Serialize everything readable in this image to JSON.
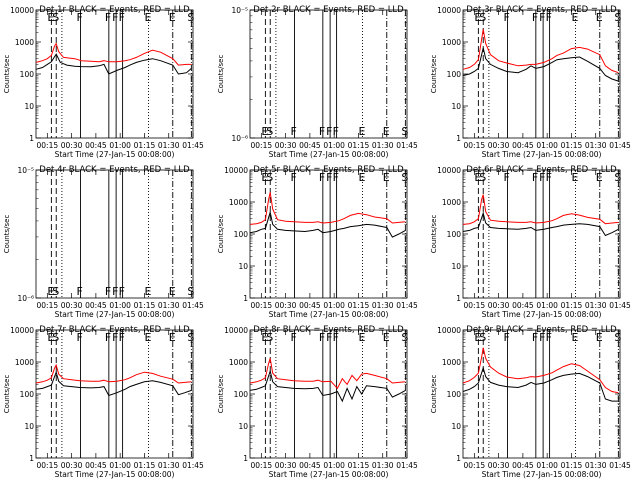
{
  "chart_data": {
    "type": "line",
    "colors": {
      "events": "#000000",
      "lld": "#ff0000"
    },
    "x_ticks": [
      "00:15",
      "00:30",
      "00:45",
      "01:00",
      "01:15",
      "01:30",
      "01:45"
    ],
    "x_range_minutes": [
      8,
      105
    ],
    "xlabel": "Start Time (27-Jan-15 00:08:00)",
    "ylabel": "Counts/sec",
    "markers": [
      {
        "t": 17.5,
        "style": "dash",
        "letter": "E"
      },
      {
        "t": 20.5,
        "style": "dash",
        "letter": "S"
      },
      {
        "t": 24,
        "style": "dot",
        "letter": ""
      },
      {
        "t": 35.5,
        "style": "solid",
        "letter": "F"
      },
      {
        "t": 53,
        "style": "solid",
        "letter": "F"
      },
      {
        "t": 57.5,
        "style": "solid",
        "letter": "F"
      },
      {
        "t": 61.5,
        "style": "solid",
        "letter": "F"
      },
      {
        "t": 77.5,
        "style": "dot",
        "letter": "E"
      },
      {
        "t": 92.5,
        "style": "dashdot",
        "letter": "E"
      },
      {
        "t": 104,
        "style": "dashdot",
        "letter": "S"
      }
    ],
    "panels": [
      {
        "title": "Det 1r BLACK = Events, RED = LLD",
        "ylim": [
          1,
          10000
        ],
        "ytick_labels": [
          "1",
          "10",
          "100",
          "1000",
          "10000"
        ],
        "letter_pos": "top",
        "series": [
          {
            "name": "Events",
            "t": [
              8,
              12,
              15,
              17.5,
              20.5,
              23,
              27,
              32,
              36,
              42,
              47,
              50,
              53,
              58,
              63,
              66,
              70,
              75,
              80,
              85,
              92.5,
              96,
              99,
              101,
              104
            ],
            "v": [
              140,
              160,
              200,
              240,
              420,
              230,
              190,
              175,
              170,
              168,
              180,
              200,
              100,
              130,
              160,
              190,
              230,
              270,
              300,
              260,
              190,
              100,
              105,
              110,
              150
            ]
          },
          {
            "name": "LLD",
            "t": [
              8,
              12,
              15,
              17.5,
              19.5,
              20.5,
              22,
              25,
              32,
              36,
              42,
              47,
              50,
              53,
              58,
              63,
              66,
              70,
              75,
              80,
              85,
              92.5,
              96,
              101,
              104
            ],
            "v": [
              230,
              260,
              300,
              380,
              750,
              900,
              500,
              330,
              300,
              260,
              250,
              240,
              260,
              240,
              240,
              260,
              280,
              330,
              440,
              560,
              480,
              300,
              190,
              200,
              200
            ]
          }
        ]
      },
      {
        "title": "Det 2r BLACK = Events, RED = LLD",
        "ylim": [
          1e-06,
          1e-05
        ],
        "ytick_labels": [
          "10⁻⁶",
          "10⁻⁵"
        ],
        "letter_pos": "bottom",
        "series": []
      },
      {
        "title": "Det 3r BLACK = Events, RED = LLD",
        "ylim": [
          1,
          10000
        ],
        "ytick_labels": [
          "1",
          "10",
          "100",
          "1000",
          "10000"
        ],
        "letter_pos": "top",
        "series": [
          {
            "name": "Events",
            "t": [
              8,
              12,
              15,
              17.5,
              20.5,
              22,
              25,
              30,
              35,
              42,
              47,
              50,
              53,
              58,
              63,
              66,
              70,
              75,
              80,
              85,
              92.5,
              96,
              100,
              104
            ],
            "v": [
              90,
              100,
              120,
              150,
              650,
              300,
              200,
              150,
              120,
              110,
              140,
              180,
              150,
              170,
              230,
              280,
              300,
              320,
              340,
              250,
              150,
              90,
              70,
              60
            ]
          },
          {
            "name": "LLD",
            "t": [
              8,
              12,
              15,
              17.5,
              20.5,
              22,
              25,
              30,
              35,
              42,
              47,
              50,
              53,
              58,
              63,
              66,
              70,
              75,
              80,
              85,
              92.5,
              96,
              100,
              104
            ],
            "v": [
              140,
              160,
              200,
              280,
              2500,
              900,
              400,
              260,
              220,
              180,
              190,
              200,
              200,
              230,
              300,
              380,
              450,
              620,
              680,
              600,
              400,
              180,
              130,
              110
            ]
          }
        ]
      },
      {
        "title": "Det 4r BLACK = Events, RED = LLD",
        "ylim": [
          1e-06,
          1e-05
        ],
        "ytick_labels": [
          "10⁻⁶",
          "10⁻⁵"
        ],
        "letter_pos": "bottom",
        "series": []
      },
      {
        "title": "Det 5r BLACK = Events, RED = LLD",
        "ylim": [
          1,
          10000
        ],
        "ytick_labels": [
          "1",
          "10",
          "100",
          "1000",
          "10000"
        ],
        "letter_pos": "top",
        "series": [
          {
            "name": "Events",
            "t": [
              8,
              12,
              15,
              17.5,
              20.5,
              22,
              25,
              30,
              35,
              42,
              47,
              50,
              53,
              58,
              63,
              66,
              70,
              75,
              80,
              85,
              92.5,
              96,
              100,
              104
            ],
            "v": [
              110,
              120,
              140,
              150,
              480,
              200,
              140,
              130,
              125,
              120,
              130,
              140,
              110,
              120,
              140,
              150,
              170,
              180,
              200,
              190,
              160,
              80,
              100,
              130
            ]
          },
          {
            "name": "LLD",
            "t": [
              8,
              12,
              15,
              17.5,
              19.5,
              20.5,
              22,
              25,
              30,
              35,
              42,
              47,
              50,
              53,
              58,
              63,
              66,
              70,
              75,
              80,
              85,
              92.5,
              96,
              100,
              104
            ],
            "v": [
              200,
              210,
              230,
              280,
              1200,
              2000,
              600,
              280,
              250,
              240,
              230,
              230,
              240,
              220,
              230,
              260,
              300,
              380,
              440,
              400,
              340,
              300,
              220,
              230,
              240
            ]
          }
        ]
      },
      {
        "title": "Det 6r BLACK = Events, RED = LLD",
        "ylim": [
          1,
          10000
        ],
        "ytick_labels": [
          "1",
          "10",
          "100",
          "1000",
          "10000"
        ],
        "letter_pos": "top",
        "series": [
          {
            "name": "Events",
            "t": [
              8,
              12,
              15,
              17.5,
              20.5,
              22,
              25,
              30,
              35,
              42,
              47,
              50,
              53,
              58,
              63,
              66,
              70,
              75,
              80,
              85,
              92.5,
              96,
              100,
              104
            ],
            "v": [
              120,
              130,
              150,
              160,
              450,
              220,
              160,
              150,
              145,
              140,
              150,
              160,
              130,
              140,
              160,
              170,
              190,
              200,
              210,
              200,
              170,
              90,
              110,
              140
            ]
          },
          {
            "name": "LLD",
            "t": [
              8,
              12,
              15,
              17.5,
              19.5,
              20.5,
              22,
              25,
              30,
              35,
              42,
              47,
              50,
              53,
              58,
              63,
              66,
              70,
              75,
              80,
              85,
              92.5,
              96,
              100,
              104
            ],
            "v": [
              200,
              210,
              240,
              300,
              1200,
              1700,
              500,
              270,
              250,
              240,
              230,
              230,
              240,
              220,
              230,
              260,
              300,
              380,
              430,
              390,
              330,
              290,
              210,
              220,
              230
            ]
          }
        ]
      },
      {
        "title": "Det 7r BLACK = Events, RED = LLD",
        "ylim": [
          1,
          10000
        ],
        "ytick_labels": [
          "1",
          "10",
          "100",
          "1000",
          "10000"
        ],
        "letter_pos": "top",
        "series": [
          {
            "name": "Events",
            "t": [
              8,
              12,
              15,
              17.5,
              20.5,
              22,
              25,
              30,
              35,
              42,
              47,
              50,
              53,
              58,
              63,
              66,
              70,
              75,
              80,
              85,
              92.5,
              96,
              100,
              104
            ],
            "v": [
              140,
              150,
              170,
              190,
              480,
              250,
              180,
              170,
              160,
              155,
              160,
              170,
              90,
              110,
              140,
              170,
              200,
              240,
              260,
              230,
              180,
              95,
              110,
              130
            ]
          },
          {
            "name": "LLD",
            "t": [
              8,
              12,
              15,
              17.5,
              19.5,
              20.5,
              22,
              25,
              30,
              35,
              42,
              47,
              50,
              53,
              58,
              63,
              66,
              70,
              75,
              80,
              85,
              92.5,
              96,
              100,
              104
            ],
            "v": [
              220,
              240,
              270,
              320,
              650,
              800,
              420,
              300,
              280,
              260,
              250,
              250,
              270,
              240,
              250,
              280,
              320,
              400,
              480,
              440,
              360,
              290,
              220,
              230,
              240
            ]
          }
        ]
      },
      {
        "title": "Det 8r BLACK = Events, RED = LLD",
        "ylim": [
          1,
          10000
        ],
        "ytick_labels": [
          "1",
          "10",
          "100",
          "1000",
          "10000"
        ],
        "letter_pos": "top",
        "series": [
          {
            "name": "Events",
            "t": [
              8,
              12,
              15,
              17.5,
              20.5,
              22,
              25,
              30,
              35,
              42,
              47,
              50,
              53,
              58,
              62,
              65,
              68,
              71,
              74,
              77,
              80,
              85,
              92.5,
              96,
              100,
              104
            ],
            "v": [
              130,
              140,
              160,
              180,
              520,
              240,
              170,
              160,
              150,
              145,
              150,
              160,
              90,
              100,
              120,
              60,
              150,
              70,
              170,
              100,
              180,
              170,
              150,
              80,
              100,
              130
            ]
          },
          {
            "name": "LLD",
            "t": [
              8,
              12,
              15,
              17.5,
              19.5,
              20.5,
              22,
              25,
              30,
              35,
              42,
              47,
              50,
              53,
              58,
              62,
              65,
              68,
              71,
              74,
              77,
              80,
              85,
              92.5,
              96,
              100,
              104
            ],
            "v": [
              220,
              240,
              270,
              320,
              900,
              1300,
              450,
              300,
              280,
              260,
              250,
              250,
              270,
              240,
              250,
              150,
              300,
              200,
              380,
              260,
              420,
              440,
              380,
              300,
              220,
              230,
              240
            ]
          }
        ]
      },
      {
        "title": "Det 9r BLACK = Events, RED = LLD",
        "ylim": [
          1,
          10000
        ],
        "ytick_labels": [
          "1",
          "10",
          "100",
          "1000",
          "10000"
        ],
        "letter_pos": "top",
        "series": [
          {
            "name": "Events",
            "t": [
              8,
              12,
              15,
              17.5,
              20.5,
              22,
              25,
              30,
              35,
              42,
              47,
              50,
              53,
              58,
              63,
              66,
              70,
              75,
              80,
              85,
              92.5,
              96,
              100,
              104
            ],
            "v": [
              120,
              140,
              170,
              220,
              650,
              350,
              230,
              190,
              170,
              160,
              190,
              230,
              200,
              220,
              280,
              330,
              380,
              420,
              440,
              350,
              220,
              70,
              60,
              60
            ]
          },
          {
            "name": "LLD",
            "t": [
              8,
              12,
              15,
              17.5,
              19.5,
              20.5,
              22,
              25,
              30,
              35,
              42,
              47,
              50,
              53,
              58,
              63,
              66,
              70,
              75,
              80,
              85,
              92.5,
              96,
              100,
              104
            ],
            "v": [
              220,
              260,
              330,
              450,
              1400,
              2800,
              1300,
              700,
              450,
              340,
              300,
              320,
              350,
              340,
              380,
              460,
              560,
              720,
              880,
              780,
              520,
              280,
              160,
              120,
              110
            ]
          }
        ]
      }
    ]
  }
}
